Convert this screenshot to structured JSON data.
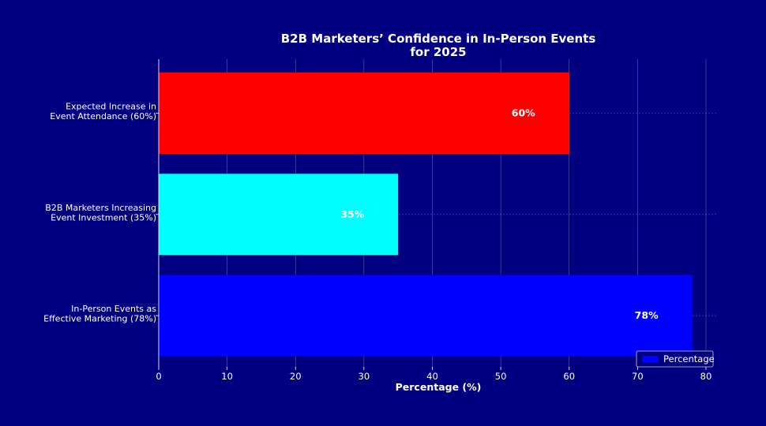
{
  "chart_data": {
    "type": "bar",
    "orientation": "horizontal",
    "title": [
      "B2B Marketers’ Confidence in In-Person Events",
      "for 2025"
    ],
    "xlabel": "Percentage (%)",
    "ylabel": "",
    "xlim": [
      0,
      82
    ],
    "xticks": [
      0,
      10,
      20,
      30,
      40,
      50,
      60,
      70,
      80
    ],
    "grid": true,
    "legend": {
      "position": "bottom-right",
      "entries": [
        "Percentage"
      ]
    },
    "categories": [
      [
        "Expected Increase in",
        "Event Attendance (60%)"
      ],
      [
        "B2B Marketers Increasing",
        "Event Investment (35%)"
      ],
      [
        "In-Person Events as",
        "Effective Marketing (78%)"
      ]
    ],
    "series": [
      {
        "name": "Percentage",
        "values": [
          60,
          35,
          78
        ],
        "labels": [
          "60%",
          "35%",
          "78%"
        ],
        "colors": [
          "#ff0000",
          "#00ffff",
          "#0000ff"
        ]
      }
    ]
  },
  "colors": {
    "background": "#000080",
    "text": "#ffffff",
    "grid": "#6a6aa8"
  }
}
